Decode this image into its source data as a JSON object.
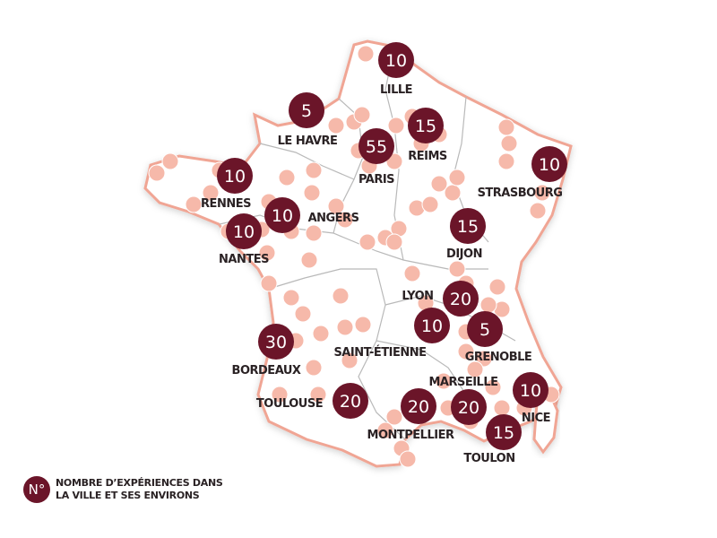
{
  "colors": {
    "bubble": "#6b1529",
    "dot": "#f6b9aa",
    "border": "#f0a594",
    "region_line": "#b9b9b9"
  },
  "cities": [
    {
      "name": "LILLE",
      "value": "10"
    },
    {
      "name": "LE HAVRE",
      "value": "5"
    },
    {
      "name": "REIMS",
      "value": "15"
    },
    {
      "name": "PARIS",
      "value": "55"
    },
    {
      "name": "STRASBOURG",
      "value": "10"
    },
    {
      "name": "RENNES",
      "value": "10"
    },
    {
      "name": "ANGERS",
      "value": "10"
    },
    {
      "name": "NANTES",
      "value": "10"
    },
    {
      "name": "DIJON",
      "value": "15"
    },
    {
      "name": "LYON",
      "value": "20"
    },
    {
      "name": "SAINT-ÉTIENNE",
      "value": "10"
    },
    {
      "name": "GRENOBLE",
      "value": "5"
    },
    {
      "name": "BORDEAUX",
      "value": "30"
    },
    {
      "name": "MARSEILLE",
      "value": "20"
    },
    {
      "name": "MONTPELLIER",
      "value": "20"
    },
    {
      "name": "NICE",
      "value": "10"
    },
    {
      "name": "TOULON",
      "value": "15"
    },
    {
      "name": "TOULOUSE",
      "value": "20"
    }
  ],
  "legend": {
    "symbol": "N°",
    "line1": "NOMBRE D’EXPÉRIENCES DANS",
    "line2": "LA VILLE ET SES ENVIRONS"
  }
}
